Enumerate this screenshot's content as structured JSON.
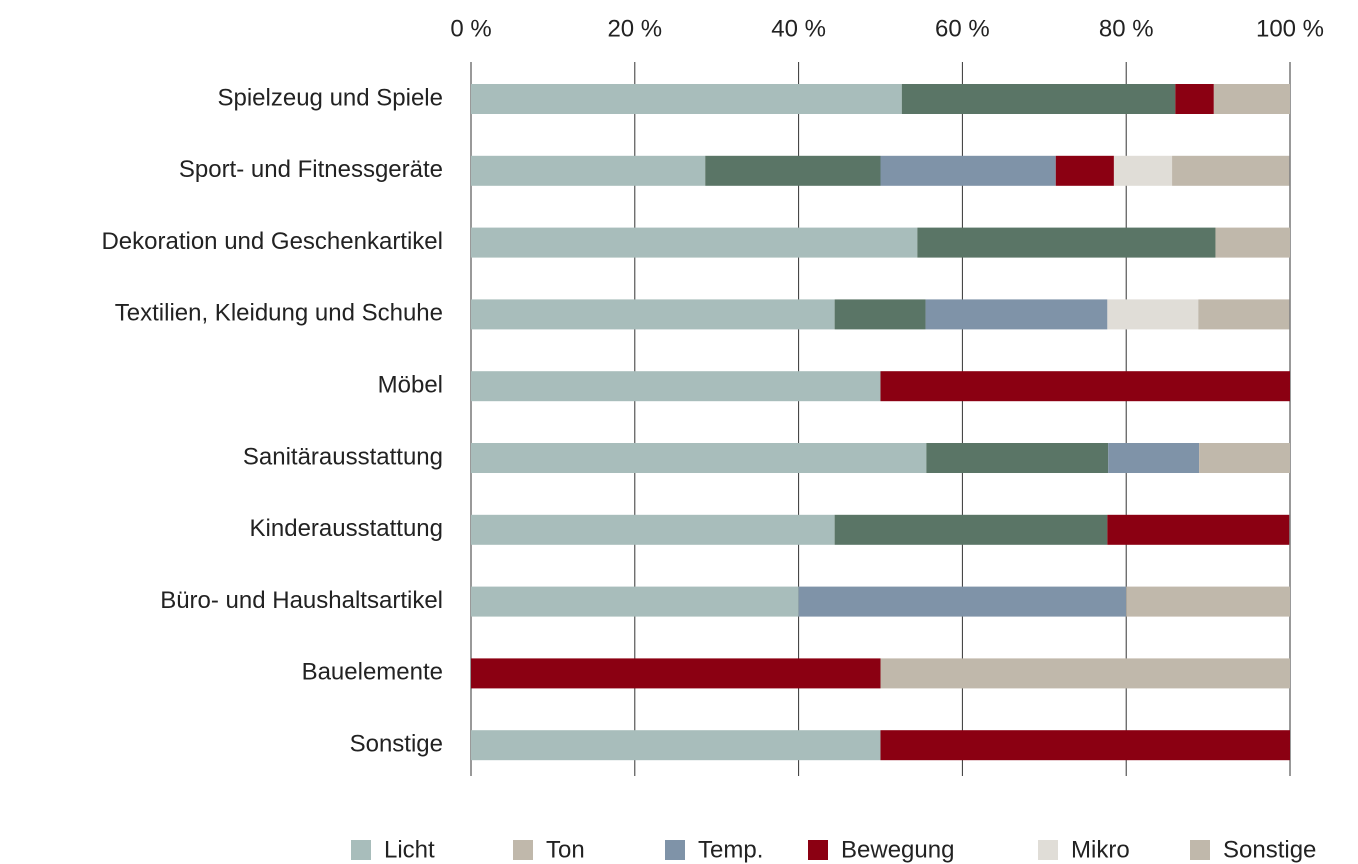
{
  "chart_data": {
    "type": "stacked-bar-horizontal",
    "categories": [
      "Spielzeug und Spiele",
      "Sport- und Fitnessgeräte",
      "Dekoration und Geschenkartikel",
      "Textilien, Kleidung und Schuhe",
      "Möbel",
      "Sanitärausstattung",
      "Kinderausstattung",
      "Büro- und Haushaltsartikel",
      "Bauelemente",
      "Sonstige"
    ],
    "series": [
      {
        "name": "Licht",
        "color": "#a8bdbb",
        "values": [
          52.6,
          28.6,
          54.5,
          44.4,
          50,
          55.6,
          44.4,
          40,
          0,
          50
        ]
      },
      {
        "name": "Ton",
        "color": "#5a7566",
        "legend_color": "#c0b8ab",
        "values": [
          33.4,
          21.4,
          36.4,
          11.1,
          0,
          22.2,
          33.3,
          0,
          0,
          0
        ]
      },
      {
        "name": "Temp.",
        "color": "#7f93a8",
        "values": [
          0,
          21.4,
          0,
          22.2,
          0,
          11.1,
          0,
          40,
          0,
          0
        ]
      },
      {
        "name": "Bewegung",
        "color": "#8b0012",
        "values": [
          4.7,
          7.1,
          0,
          0,
          50,
          0,
          22.2,
          0,
          50,
          50
        ]
      },
      {
        "name": "Mikro",
        "color": "#e0ddd7",
        "values": [
          0,
          7.1,
          0,
          11.1,
          0,
          0,
          0,
          0,
          0,
          0
        ]
      },
      {
        "name": "Sonstige",
        "color": "#c0b8ab",
        "values": [
          9.3,
          14.3,
          9.1,
          11.1,
          0,
          11.1,
          0,
          20,
          50,
          0
        ]
      }
    ],
    "xlim": [
      0,
      100
    ],
    "xticks": [
      {
        "value": 0,
        "label": "0 %"
      },
      {
        "value": 20,
        "label": "20 %"
      },
      {
        "value": 40,
        "label": "40 %"
      },
      {
        "value": 60,
        "label": "60 %"
      },
      {
        "value": 80,
        "label": "80 %"
      },
      {
        "value": 100,
        "label": "100 %"
      }
    ],
    "grid": true,
    "legend": "bottom"
  }
}
